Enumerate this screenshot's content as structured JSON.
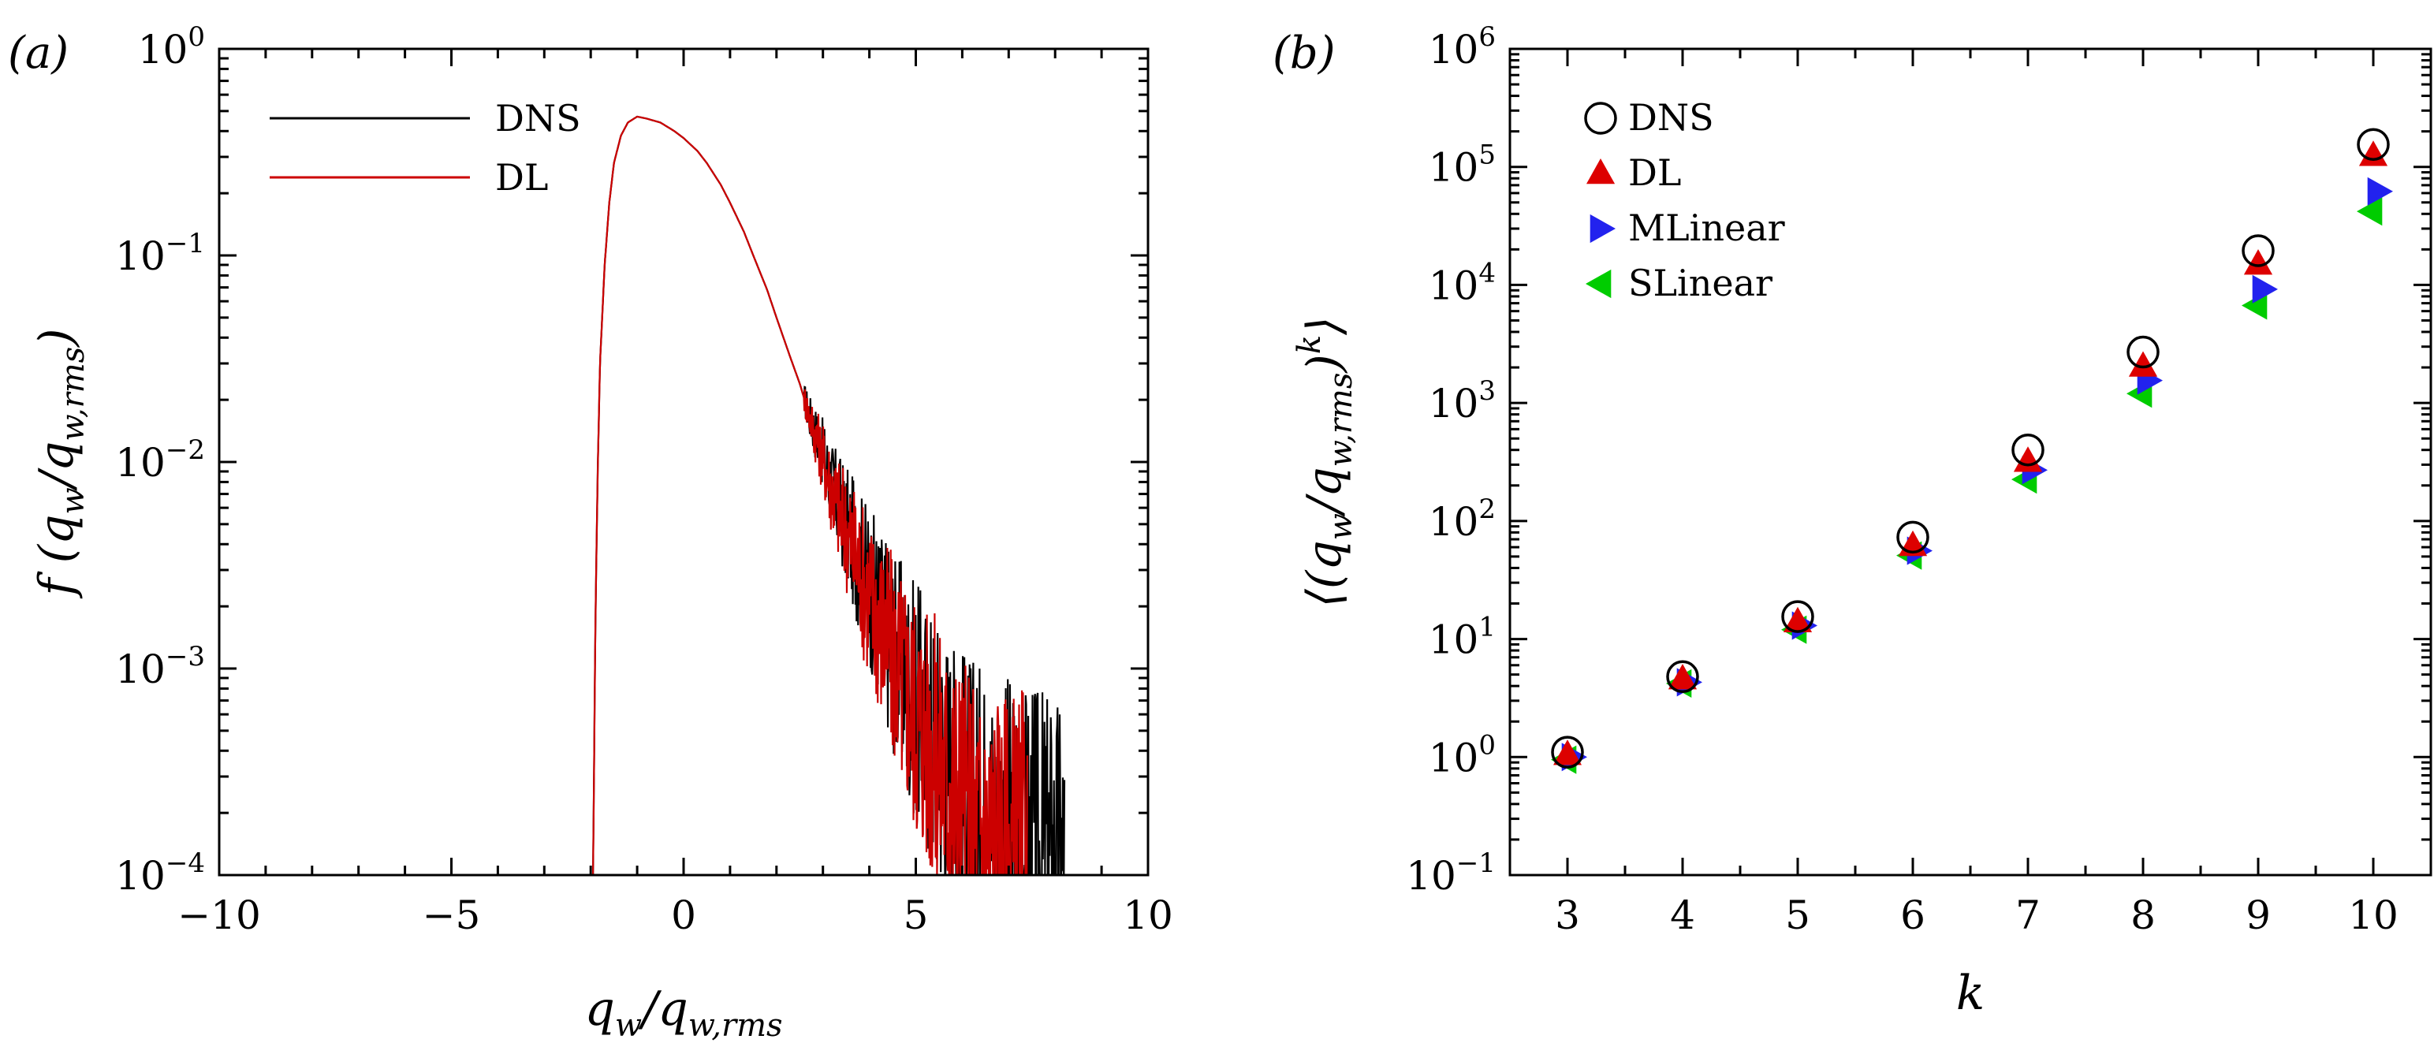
{
  "figure": {
    "panels": [
      {
        "label": "(a)",
        "xlabel": "qw/qw,rms",
        "ylabel": "f(qw/qw,rms)"
      },
      {
        "label": "(b)",
        "xlabel": "k",
        "ylabel": "⟨(qw/qw,rms)k⟩"
      }
    ]
  },
  "chart_data": [
    {
      "type": "line",
      "panel": "(a)",
      "xlabel": "qw/qw,rms",
      "ylabel": "f(qw/qw,rms)",
      "xlim": [
        -10,
        10
      ],
      "ylim": [
        0.0001,
        1
      ],
      "yscale": "log",
      "xticks": [
        "−10",
        "−5",
        "0",
        "5",
        "10"
      ],
      "yticks": [
        {
          "base": "10",
          "exp": "−4"
        },
        {
          "base": "10",
          "exp": "−3"
        },
        {
          "base": "10",
          "exp": "−2"
        },
        {
          "base": "10",
          "exp": "−1"
        },
        {
          "base": "10",
          "exp": "0"
        }
      ],
      "legend": {
        "position": "top-left"
      },
      "series": [
        {
          "name": "DNS",
          "color": "#000000",
          "points": [
            [
              -1.95,
              0.0001
            ],
            [
              -1.9,
              0.0016
            ],
            [
              -1.85,
              0.009
            ],
            [
              -1.8,
              0.03
            ],
            [
              -1.7,
              0.09
            ],
            [
              -1.6,
              0.18
            ],
            [
              -1.5,
              0.28
            ],
            [
              -1.35,
              0.38
            ],
            [
              -1.2,
              0.44
            ],
            [
              -1.0,
              0.47
            ],
            [
              -0.8,
              0.46
            ],
            [
              -0.5,
              0.44
            ],
            [
              -0.2,
              0.4
            ],
            [
              0.0,
              0.37
            ],
            [
              0.3,
              0.32
            ],
            [
              0.5,
              0.28
            ],
            [
              0.8,
              0.22
            ],
            [
              1.0,
              0.18
            ],
            [
              1.3,
              0.13
            ],
            [
              1.5,
              0.1
            ],
            [
              1.8,
              0.068
            ],
            [
              2.0,
              0.05
            ],
            [
              2.3,
              0.032
            ],
            [
              2.5,
              0.024
            ],
            [
              2.7,
              0.017
            ],
            [
              3.0,
              0.011
            ],
            [
              3.2,
              0.0075
            ],
            [
              3.5,
              0.005
            ],
            [
              3.8,
              0.0033
            ],
            [
              4.0,
              0.0025
            ],
            [
              4.3,
              0.0017
            ],
            [
              4.6,
              0.0011
            ],
            [
              5.0,
              0.0007
            ],
            [
              5.4,
              0.00045
            ],
            [
              5.8,
              0.0003
            ],
            [
              6.2,
              0.0002
            ],
            [
              6.8,
              0.00015
            ],
            [
              7.5,
              0.00012
            ],
            [
              8.2,
              0.0001
            ]
          ]
        },
        {
          "name": "DL",
          "color": "#cc0000",
          "points": [
            [
              -1.95,
              0.0001
            ],
            [
              -1.9,
              0.0016
            ],
            [
              -1.85,
              0.009
            ],
            [
              -1.8,
              0.03
            ],
            [
              -1.7,
              0.09
            ],
            [
              -1.6,
              0.18
            ],
            [
              -1.5,
              0.28
            ],
            [
              -1.35,
              0.38
            ],
            [
              -1.2,
              0.44
            ],
            [
              -1.0,
              0.47
            ],
            [
              -0.8,
              0.46
            ],
            [
              -0.5,
              0.44
            ],
            [
              -0.2,
              0.4
            ],
            [
              0.0,
              0.37
            ],
            [
              0.3,
              0.32
            ],
            [
              0.5,
              0.28
            ],
            [
              0.8,
              0.22
            ],
            [
              1.0,
              0.18
            ],
            [
              1.3,
              0.13
            ],
            [
              1.5,
              0.1
            ],
            [
              1.8,
              0.068
            ],
            [
              2.0,
              0.05
            ],
            [
              2.3,
              0.032
            ],
            [
              2.5,
              0.024
            ],
            [
              2.7,
              0.017
            ],
            [
              3.0,
              0.0105
            ],
            [
              3.2,
              0.0072
            ],
            [
              3.5,
              0.0047
            ],
            [
              3.8,
              0.003
            ],
            [
              4.0,
              0.0022
            ],
            [
              4.3,
              0.0015
            ],
            [
              4.6,
              0.001
            ],
            [
              5.0,
              0.0006
            ],
            [
              5.4,
              0.0004
            ],
            [
              5.8,
              0.00025
            ],
            [
              6.2,
              0.00016
            ],
            [
              6.8,
              0.00012
            ],
            [
              7.4,
              0.0001
            ]
          ]
        }
      ]
    },
    {
      "type": "scatter",
      "panel": "(b)",
      "xlabel": "k",
      "ylabel": "⟨(qw/qw,rms)k⟩",
      "xlim": [
        2.5,
        10.5
      ],
      "ylim": [
        0.1,
        1000000
      ],
      "yscale": "log",
      "xticks": [
        "3",
        "4",
        "5",
        "6",
        "7",
        "8",
        "9",
        "10"
      ],
      "yticks": [
        {
          "base": "10",
          "exp": "−1"
        },
        {
          "base": "10",
          "exp": "0"
        },
        {
          "base": "10",
          "exp": "1"
        },
        {
          "base": "10",
          "exp": "2"
        },
        {
          "base": "10",
          "exp": "3"
        },
        {
          "base": "10",
          "exp": "4"
        },
        {
          "base": "10",
          "exp": "5"
        },
        {
          "base": "10",
          "exp": "6"
        }
      ],
      "legend": {
        "position": "top-left"
      },
      "x": [
        3,
        4,
        5,
        6,
        7,
        8,
        9,
        10
      ],
      "series": [
        {
          "name": "DNS",
          "marker": "open-circle",
          "color": "#000000",
          "values": [
            1.1,
            4.8,
            15.5,
            73,
            400,
            2700,
            19500,
            155000
          ]
        },
        {
          "name": "DL",
          "marker": "triangle-up",
          "color": "#dd0000",
          "values": [
            1.05,
            4.6,
            14,
            62,
            320,
            2050,
            15000,
            125000
          ]
        },
        {
          "name": "MLinear",
          "marker": "triangle-right",
          "color": "#2222ee",
          "values": [
            1.0,
            4.3,
            13,
            56,
            270,
            1550,
            9200,
            62000
          ]
        },
        {
          "name": "SLinear",
          "marker": "triangle-left",
          "color": "#00cc00",
          "values": [
            0.95,
            4.2,
            12,
            51,
            225,
            1200,
            6700,
            42000
          ]
        }
      ]
    }
  ]
}
